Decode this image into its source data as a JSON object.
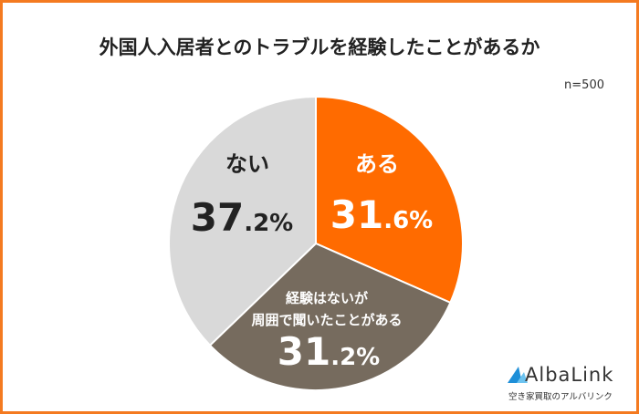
{
  "chart_data": {
    "type": "pie",
    "title": "外国人入居者とのトラブルを経験したことがあるか",
    "note": "n=500",
    "slices": [
      {
        "label": "ある",
        "value": 31.6,
        "display_int": "31",
        "display_dec": ".6%",
        "color": "#FF6B00",
        "text_color": "#ffffff"
      },
      {
        "label": "経験はないが\n周囲で聞いたことがある",
        "label_lines": [
          "経験はないが",
          "周囲で聞いたことがある"
        ],
        "value": 31.2,
        "display_int": "31",
        "display_dec": ".2%",
        "color": "#766B5E",
        "text_color": "#ffffff"
      },
      {
        "label": "ない",
        "value": 37.2,
        "display_int": "37",
        "display_dec": ".2%",
        "color": "#D9D9D9",
        "text_color": "#222222"
      }
    ]
  },
  "logo": {
    "name": "AlbaLink",
    "tagline": "空き家買取のアルバリンク",
    "color": "#1E8FD8"
  },
  "frame_color": "#F47A20"
}
